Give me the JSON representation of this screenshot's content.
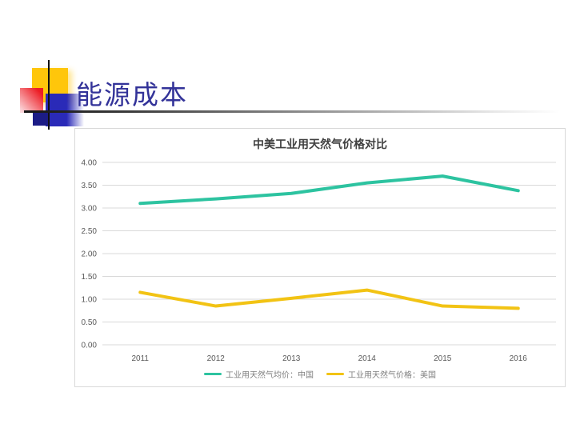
{
  "slide": {
    "title": "能源成本"
  },
  "chart_data": {
    "type": "line",
    "title": "中美工业用天然气价格对比",
    "categories": [
      "2011",
      "2012",
      "2013",
      "2014",
      "2015",
      "2016"
    ],
    "series": [
      {
        "key": "china",
        "name": "工业用天然气均价：中国",
        "color": "#2DC3A0",
        "values": [
          3.1,
          3.2,
          3.32,
          3.55,
          3.7,
          3.38
        ]
      },
      {
        "key": "us",
        "name": "工业用天然气价格：美国",
        "color": "#F2C314",
        "values": [
          1.15,
          0.85,
          1.02,
          1.2,
          0.85,
          0.8
        ]
      }
    ],
    "xlabel": "",
    "ylabel": "",
    "ylim": [
      0,
      4
    ],
    "y_ticks": [
      "0.00",
      "0.50",
      "1.00",
      "1.50",
      "2.00",
      "2.50",
      "3.00",
      "3.50",
      "4.00"
    ],
    "grid": true,
    "legend_position": "bottom"
  },
  "theme": {
    "title_color": "#333399",
    "chart_title_color": "#404040",
    "axis_label_color": "#595959",
    "legend_text_color": "#7F7F7F",
    "grid_color": "#D9D9D9",
    "chart_border_color": "#D9D9D9",
    "ornament_yellow": "#FFC60B",
    "ornament_red": "#ED1C24",
    "ornament_blue": "#2A2AB8",
    "ornament_navy": "#1C1C86"
  }
}
